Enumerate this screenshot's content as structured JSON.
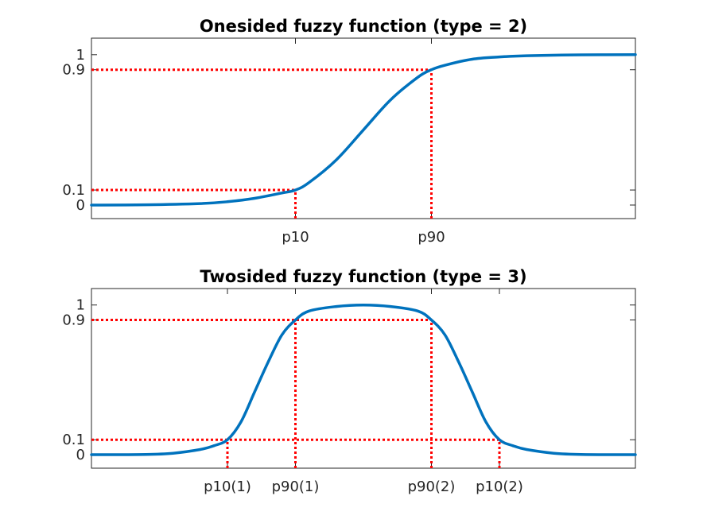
{
  "chart_data": [
    {
      "type": "line",
      "title": "Onesided fuzzy function (type = 2)",
      "xlabel": "",
      "ylabel": "",
      "xlim": [
        0,
        1
      ],
      "ylim": [
        -0.09,
        1.11
      ],
      "y_ticks": [
        {
          "value": 0,
          "label": "0"
        },
        {
          "value": 0.1,
          "label": "0.1"
        },
        {
          "value": 0.9,
          "label": "0.9"
        },
        {
          "value": 1,
          "label": "1"
        }
      ],
      "x_ticks": [
        {
          "value": 0.375,
          "label": "p10"
        },
        {
          "value": 0.625,
          "label": "p90"
        }
      ],
      "reference_lines": [
        {
          "y": 0.1,
          "x_from": 0,
          "x_to": 0.375
        },
        {
          "y": 0.9,
          "x_from": 0,
          "x_to": 0.625
        },
        {
          "x": 0.375,
          "y_from": -0.09,
          "y_to": 0.1
        },
        {
          "x": 0.625,
          "y_from": -0.09,
          "y_to": 0.9
        }
      ],
      "series": [
        {
          "shape": "sigmoid rising",
          "color": "#0072bd",
          "x": [
            0,
            0.1,
            0.2,
            0.25,
            0.3,
            0.35,
            0.375,
            0.4,
            0.45,
            0.5,
            0.55,
            0.6,
            0.625,
            0.65,
            0.7,
            0.75,
            0.8,
            0.9,
            1
          ],
          "y": [
            0,
            0.002,
            0.01,
            0.022,
            0.045,
            0.08,
            0.1,
            0.15,
            0.3,
            0.5,
            0.7,
            0.85,
            0.9,
            0.93,
            0.97,
            0.985,
            0.993,
            0.999,
            1
          ]
        }
      ],
      "grid": false,
      "legend": "none"
    },
    {
      "type": "line",
      "title": "Twosided fuzzy function (type = 3)",
      "xlabel": "",
      "ylabel": "",
      "xlim": [
        0,
        1
      ],
      "ylim": [
        -0.09,
        1.11
      ],
      "y_ticks": [
        {
          "value": 0,
          "label": "0"
        },
        {
          "value": 0.1,
          "label": "0.1"
        },
        {
          "value": 0.9,
          "label": "0.9"
        },
        {
          "value": 1,
          "label": "1"
        }
      ],
      "x_ticks": [
        {
          "value": 0.25,
          "label": "p10(1)"
        },
        {
          "value": 0.375,
          "label": "p90(1)"
        },
        {
          "value": 0.625,
          "label": "p90(2)"
        },
        {
          "value": 0.75,
          "label": "p10(2)"
        }
      ],
      "reference_lines": [
        {
          "y": 0.1,
          "x_from": 0,
          "x_to": 0.75
        },
        {
          "y": 0.9,
          "x_from": 0,
          "x_to": 0.625
        },
        {
          "x": 0.25,
          "y_from": -0.09,
          "y_to": 0.1
        },
        {
          "x": 0.375,
          "y_from": -0.09,
          "y_to": 0.9
        },
        {
          "x": 0.625,
          "y_from": -0.09,
          "y_to": 0.9
        },
        {
          "x": 0.75,
          "y_from": -0.09,
          "y_to": 0.1
        }
      ],
      "series": [
        {
          "shape": "bell",
          "color": "#0072bd",
          "x": [
            0,
            0.1,
            0.15,
            0.2,
            0.225,
            0.25,
            0.275,
            0.3,
            0.325,
            0.35,
            0.375,
            0.4,
            0.45,
            0.5,
            0.55,
            0.6,
            0.625,
            0.65,
            0.675,
            0.7,
            0.725,
            0.75,
            0.775,
            0.8,
            0.85,
            0.9,
            1
          ],
          "y": [
            0,
            0.002,
            0.01,
            0.035,
            0.06,
            0.1,
            0.22,
            0.42,
            0.62,
            0.8,
            0.9,
            0.96,
            0.99,
            1,
            0.99,
            0.96,
            0.9,
            0.8,
            0.62,
            0.42,
            0.22,
            0.1,
            0.06,
            0.035,
            0.01,
            0.002,
            0
          ]
        }
      ],
      "grid": false,
      "legend": "none"
    }
  ]
}
